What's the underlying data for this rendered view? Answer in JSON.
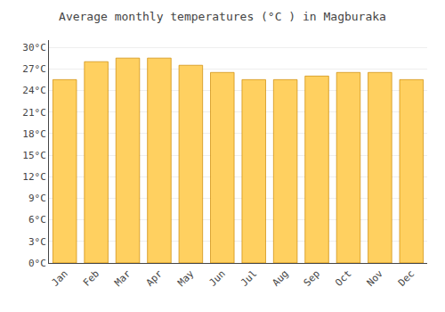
{
  "chart_data": {
    "type": "bar",
    "title": "Average monthly temperatures (°C ) in Magburaka",
    "categories": [
      "Jan",
      "Feb",
      "Mar",
      "Apr",
      "May",
      "Jun",
      "Jul",
      "Aug",
      "Sep",
      "Oct",
      "Nov",
      "Dec"
    ],
    "values": [
      25.5,
      28.0,
      28.5,
      28.5,
      27.5,
      26.5,
      25.5,
      25.5,
      26.0,
      26.5,
      26.5,
      25.5
    ],
    "color": "#FFD060",
    "ylim": [
      0,
      31
    ],
    "yticks": [
      {
        "value": 0,
        "label": "0°C"
      },
      {
        "value": 3,
        "label": "3°C"
      },
      {
        "value": 6,
        "label": "6°C"
      },
      {
        "value": 9,
        "label": "9°C"
      },
      {
        "value": 12,
        "label": "12°C"
      },
      {
        "value": 15,
        "label": "15°C"
      },
      {
        "value": 18,
        "label": "18°C"
      },
      {
        "value": 21,
        "label": "21°C"
      },
      {
        "value": 24,
        "label": "24°C"
      },
      {
        "value": 27,
        "label": "27°C"
      },
      {
        "value": 30,
        "label": "30°C"
      }
    ],
    "grid": true
  }
}
